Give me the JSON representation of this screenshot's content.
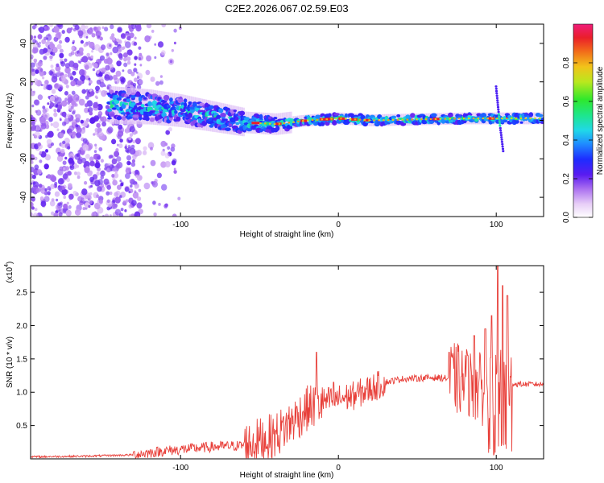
{
  "title": "C2E2.2026.067.02.59.E03",
  "chart_data": [
    {
      "type": "heatmap",
      "name": "spectrogram",
      "xlabel": "Height of straight line (km)",
      "ylabel": "Frequency (Hz)",
      "xlim": [
        -195,
        130
      ],
      "ylim": [
        -50,
        50
      ],
      "xticks": [
        -100,
        0,
        100
      ],
      "yticks": [
        -40,
        -20,
        0,
        20,
        40
      ],
      "colorbar": {
        "label": "Normalized spectral amplitude",
        "range": [
          0,
          1
        ],
        "ticks": [
          "0.0",
          "0.2",
          "0.4",
          "0.6",
          "0.8"
        ]
      },
      "ridge": [
        {
          "x": -145,
          "y": 8
        },
        {
          "x": -120,
          "y": 7
        },
        {
          "x": -100,
          "y": 5
        },
        {
          "x": -80,
          "y": 2
        },
        {
          "x": -60,
          "y": -1
        },
        {
          "x": -40,
          "y": -2
        },
        {
          "x": -20,
          "y": 0
        },
        {
          "x": 0,
          "y": 1
        },
        {
          "x": 20,
          "y": 0
        },
        {
          "x": 50,
          "y": 0.5
        },
        {
          "x": 80,
          "y": 1
        },
        {
          "x": 100,
          "y": 1
        },
        {
          "x": 130,
          "y": 1
        }
      ],
      "noise_region": {
        "x_from": -195,
        "x_to": -125
      }
    },
    {
      "type": "line",
      "name": "snr",
      "xlabel": "Height of straight line (km)",
      "ylabel": "SNR (10 * v/v)",
      "y_multiplier": "(x10",
      "y_multiplier_exp": "4",
      "y_multiplier_close": ")",
      "xlim": [
        -195,
        130
      ],
      "ylim": [
        0,
        2.9
      ],
      "xticks": [
        -100,
        0,
        100
      ],
      "yticks": [
        0.5,
        1.0,
        1.5,
        2.0,
        2.5
      ],
      "color": "#e8403a",
      "envelope": [
        {
          "x": -195,
          "y": 0.03
        },
        {
          "x": -160,
          "y": 0.04
        },
        {
          "x": -130,
          "y": 0.06
        },
        {
          "x": -110,
          "y": 0.12
        },
        {
          "x": -80,
          "y": 0.18
        },
        {
          "x": -60,
          "y": 0.2
        },
        {
          "x": -40,
          "y": 0.35
        },
        {
          "x": -30,
          "y": 0.55
        },
        {
          "x": -20,
          "y": 0.75
        },
        {
          "x": -10,
          "y": 0.85
        },
        {
          "x": 0,
          "y": 0.9
        },
        {
          "x": 10,
          "y": 0.95
        },
        {
          "x": 20,
          "y": 1.05
        },
        {
          "x": 30,
          "y": 1.15
        },
        {
          "x": 40,
          "y": 1.2
        },
        {
          "x": 60,
          "y": 1.22
        },
        {
          "x": 75,
          "y": 1.2
        },
        {
          "x": 85,
          "y": 1.1
        },
        {
          "x": 95,
          "y": 1.0
        },
        {
          "x": 103,
          "y": 1.1
        },
        {
          "x": 110,
          "y": 1.12
        },
        {
          "x": 130,
          "y": 1.12
        }
      ],
      "spikes": [
        {
          "x": -14,
          "y": 1.6
        },
        {
          "x": -3,
          "y": 1.15
        },
        {
          "x": 70,
          "y": 1.6
        },
        {
          "x": 82,
          "y": 1.55
        },
        {
          "x": 86,
          "y": 1.85
        },
        {
          "x": 93,
          "y": 1.95
        },
        {
          "x": 97,
          "y": 2.15
        },
        {
          "x": 101,
          "y": 2.9
        },
        {
          "x": 104,
          "y": 2.6
        },
        {
          "x": 107,
          "y": 2.45
        }
      ]
    }
  ]
}
